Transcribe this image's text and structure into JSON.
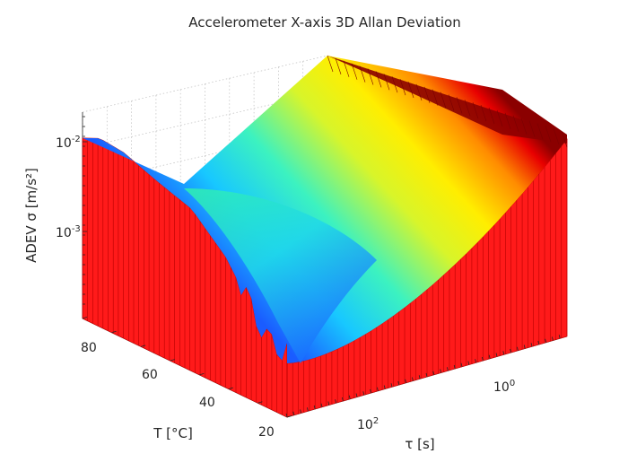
{
  "chart_data": {
    "type": "surface",
    "title": "Accelerometer X-axis 3D Allan Deviation",
    "zlabel": "ADEV σ [m/s²]",
    "ylabel": "T [°C]",
    "xlabel": "τ [s]",
    "z_scale": "log",
    "x_scale": "log",
    "z_ticks": [
      {
        "value": 0.01,
        "base": "10",
        "exp": "-2"
      },
      {
        "value": 0.001,
        "base": "10",
        "exp": "-3"
      }
    ],
    "y_ticks": [
      {
        "value": 80,
        "label": "80"
      },
      {
        "value": 60,
        "label": "60"
      },
      {
        "value": 40,
        "label": "40"
      },
      {
        "value": 20,
        "label": "20"
      }
    ],
    "x_ticks": [
      {
        "value": 1,
        "base": "10",
        "exp": "0"
      },
      {
        "value": 100,
        "base": "10",
        "exp": "2"
      }
    ],
    "temperature_range": [
      20,
      90
    ],
    "adev_profile": [
      {
        "tau_frac": 0.0,
        "adev": 0.011
      },
      {
        "tau_frac": 0.05,
        "adev": 0.0125
      },
      {
        "tau_frac": 0.12,
        "adev": 0.0105
      },
      {
        "tau_frac": 0.22,
        "adev": 0.0065
      },
      {
        "tau_frac": 0.32,
        "adev": 0.0042
      },
      {
        "tau_frac": 0.42,
        "adev": 0.0016
      },
      {
        "tau_frac": 0.5,
        "adev": 0.0005
      },
      {
        "tau_frac": 0.56,
        "adev": 0.00022
      },
      {
        "tau_frac": 0.62,
        "adev": 0.00028
      },
      {
        "tau_frac": 0.72,
        "adev": 0.0009
      },
      {
        "tau_frac": 0.82,
        "adev": 0.0025
      },
      {
        "tau_frac": 0.92,
        "adev": 0.0065
      },
      {
        "tau_frac": 1.0,
        "adev": 0.012
      }
    ],
    "colormap": "jet",
    "grid": true
  }
}
